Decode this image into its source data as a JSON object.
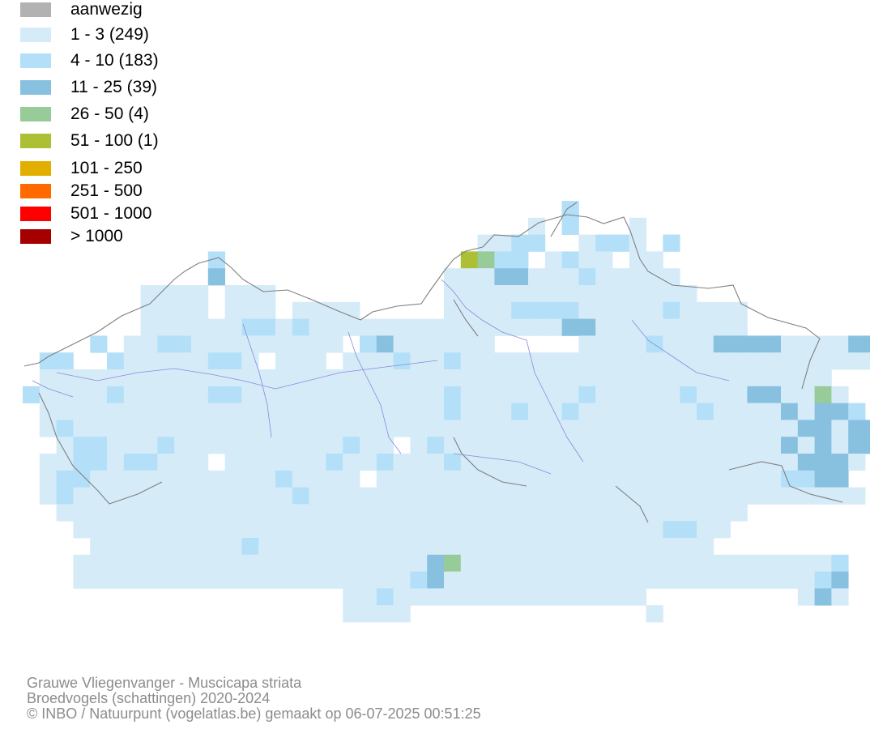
{
  "legend": {
    "items": [
      {
        "label": "aanwezig",
        "color": "#b2b2b2"
      },
      {
        "label": "1 - 3 (249)",
        "color": "#d6ebf8"
      },
      {
        "label": "4 - 10 (183)",
        "color": "#b3e0f8"
      },
      {
        "label": "11 - 25 (39)",
        "color": "#88c1df"
      },
      {
        "label": "26 - 50 (4)",
        "color": "#97cb97"
      },
      {
        "label": "51 - 100 (1)",
        "color": "#adbf35"
      },
      {
        "label": "101 - 250",
        "color": "#e2ae00"
      },
      {
        "label": "251 - 500",
        "color": "#ff6a00"
      },
      {
        "label": "501 - 1000",
        "color": "#ff0000"
      },
      {
        "label": "> 1000",
        "color": "#a50000"
      }
    ]
  },
  "map": {
    "border_color": "#7f7f7f",
    "river_color": "#8a88dd",
    "cell_counts": {
      "c1": 249,
      "c2": 183,
      "c3": 39,
      "c4": 4,
      "c5": 1
    }
  },
  "footer": {
    "line1": "Grauwe Vliegenvanger - Muscicapa striata",
    "line2": "Broedvogels (schattingen) 2020-2024",
    "line3": "© INBO / Natuurpunt (vogelatlas.be) gemaakt op 06-07-2025 00:51:25"
  }
}
